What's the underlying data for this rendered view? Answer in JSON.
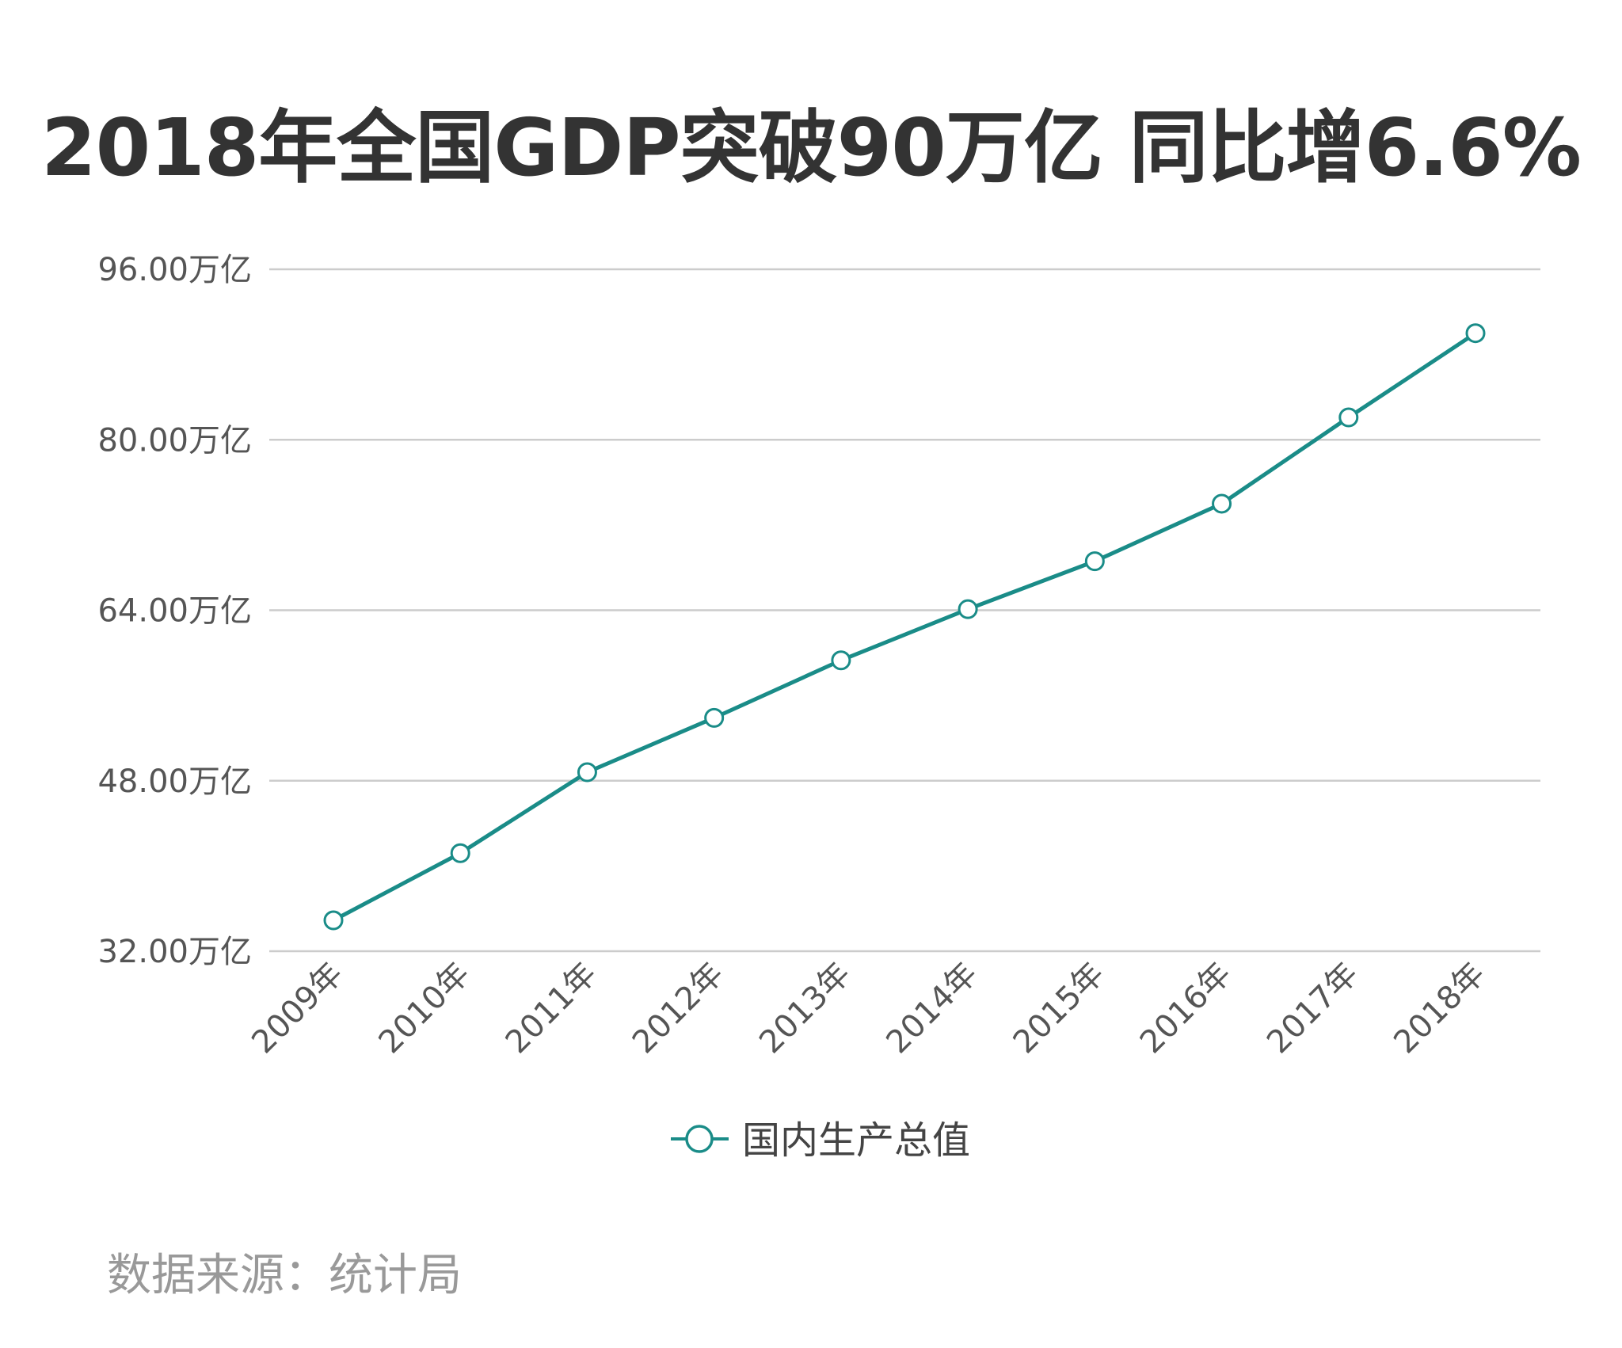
{
  "chart_data": {
    "type": "line",
    "title": "2018年全国GDP突破90万亿 同比增6.6%",
    "categories": [
      "2009年",
      "2010年",
      "2011年",
      "2012年",
      "2013年",
      "2014年",
      "2015年",
      "2016年",
      "2017年",
      "2018年"
    ],
    "series": [
      {
        "name": "国内生产总值",
        "values": [
          34.9,
          41.2,
          48.8,
          53.9,
          59.3,
          64.1,
          68.6,
          74.0,
          82.1,
          90.0
        ],
        "color": "#1a8c88"
      }
    ],
    "y_ticks": [
      32,
      48,
      64,
      80,
      96
    ],
    "y_tick_labels": [
      "32.00万亿",
      "48.00万亿",
      "64.00万亿",
      "80.00万亿",
      "96.00万亿"
    ],
    "ylim": [
      32,
      96
    ],
    "grid": true,
    "legend_position": "bottom"
  },
  "source": "数据来源：统计局"
}
